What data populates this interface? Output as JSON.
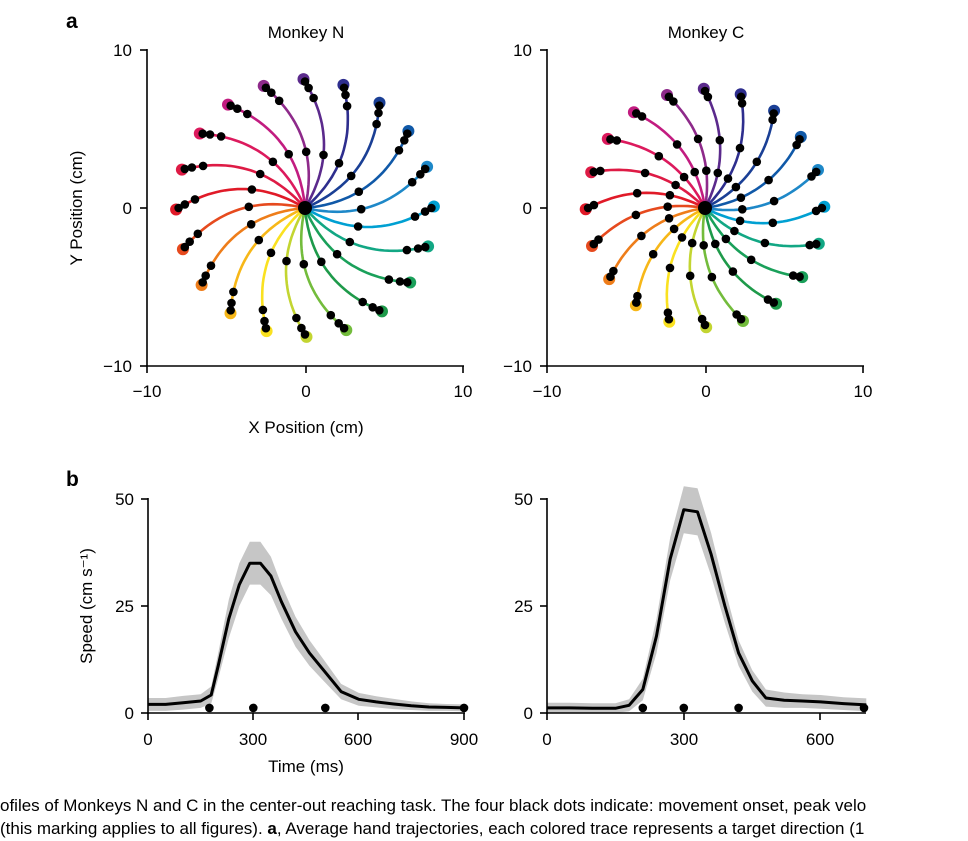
{
  "figure": {
    "panel_a": "a",
    "panel_b": "b",
    "caption_line1": "ofiles of Monkeys N and C in the center-out reaching task. The four black dots indicate: movement onset, peak velo",
    "caption_line2_pre": " (this marking applies to all figures). ",
    "caption_line2_bold": "a",
    "caption_line2_post": ", Average hand trajectories, each colored trace represents a target direction (1"
  },
  "colors": {
    "directions": [
      "#00a0d2",
      "#1e88c8",
      "#1059a8",
      "#1a3f95",
      "#2e2e8e",
      "#5b2a8c",
      "#8e2a8a",
      "#c21c80",
      "#dc1a5d",
      "#de1b45",
      "#e01a28",
      "#e64a1e",
      "#ee7d1a",
      "#f7b718",
      "#fae120",
      "#c3d531",
      "#73bc3c",
      "#1e9a4a",
      "#1aa05a",
      "#12a784"
    ],
    "dot": "#000000",
    "band": "#c6c6c6",
    "mean_line": "#000000"
  },
  "chart_data": [
    {
      "type": "scatter",
      "title": "Monkey N",
      "xlabel": "X Position (cm)",
      "ylabel": "Y Position (cm)",
      "xlim": [
        -10,
        10
      ],
      "ylim": [
        -10,
        10
      ],
      "xticks": [
        "−10",
        "0",
        "10"
      ],
      "yticks": [
        "−10",
        "0",
        "10"
      ],
      "target_radius_cm": 8,
      "n_directions": 20,
      "curvature": -0.15,
      "marker_fractions": [
        0.42,
        0.87,
        0.95,
        1.0
      ],
      "description_values": "center-out trajectories to 20 targets, angles 0°, 18°, …, 342°"
    },
    {
      "type": "scatter",
      "title": "Monkey C",
      "xlabel": "",
      "ylabel": "",
      "xlim": [
        -10,
        10
      ],
      "ylim": [
        -10,
        10
      ],
      "xticks": [
        "−10",
        "0",
        "10"
      ],
      "yticks": [
        "−10",
        "0",
        "10"
      ],
      "target_radius_cm": 7.4,
      "n_directions": 20,
      "curvature": -0.13,
      "marker_fractions": [
        0.3,
        0.58,
        0.95,
        1.0
      ],
      "description_values": "center-out trajectories to 20 targets, angles 0°, 18°, …, 342°"
    },
    {
      "type": "line",
      "xlabel": "Time (ms)",
      "ylabel": "Speed (cm s⁻¹)",
      "xlim": [
        0,
        900
      ],
      "ylim": [
        0,
        55
      ],
      "xticks": [
        0,
        300,
        600,
        900
      ],
      "yticks": [
        0,
        25,
        50
      ],
      "series": [
        {
          "x": [
            0,
            50,
            100,
            150,
            180,
            200,
            230,
            260,
            290,
            320,
            350,
            380,
            420,
            460,
            500,
            550,
            600,
            650,
            700,
            750,
            800,
            850,
            900
          ],
          "y": [
            2,
            2,
            2.4,
            2.8,
            4.2,
            11,
            22,
            30,
            35,
            35,
            32,
            26,
            19,
            14,
            10,
            5,
            3.2,
            2.6,
            2.1,
            1.7,
            1.4,
            1.3,
            1.2
          ],
          "band_half_width": [
            1.5,
            1.5,
            1.6,
            1.6,
            2,
            3,
            4.5,
            5,
            5,
            5,
            4.5,
            4,
            3.5,
            3,
            2.5,
            1.8,
            1.5,
            1.3,
            1.2,
            1,
            0.9,
            0.8,
            0.8
          ]
        }
      ],
      "event_markers_x": [
        175,
        300,
        505,
        900
      ],
      "event_markers_y": 1.2
    },
    {
      "type": "line",
      "xlabel": "",
      "ylabel": "",
      "xlim": [
        0,
        700
      ],
      "ylim": [
        0,
        55
      ],
      "xticks": [
        0,
        300,
        600
      ],
      "yticks": [
        0,
        25,
        50
      ],
      "series": [
        {
          "x": [
            0,
            50,
            100,
            150,
            180,
            210,
            240,
            270,
            300,
            330,
            360,
            390,
            420,
            450,
            480,
            520,
            560,
            600,
            650,
            700
          ],
          "y": [
            1.2,
            1.2,
            1.1,
            1.1,
            1.8,
            5.5,
            18,
            36,
            47.5,
            47,
            37,
            25,
            14,
            7.5,
            3.5,
            3,
            2.8,
            2.6,
            2.2,
            1.9
          ],
          "band_half_width": [
            1.2,
            1.2,
            1.2,
            1.2,
            1.4,
            2.5,
            4,
            5,
            5.5,
            5.5,
            5,
            4,
            3,
            2.5,
            2,
            1.8,
            1.6,
            1.6,
            1.5,
            1.5
          ]
        }
      ],
      "event_markers_x": [
        210,
        300,
        420,
        695
      ],
      "event_markers_y": 1.2
    }
  ]
}
